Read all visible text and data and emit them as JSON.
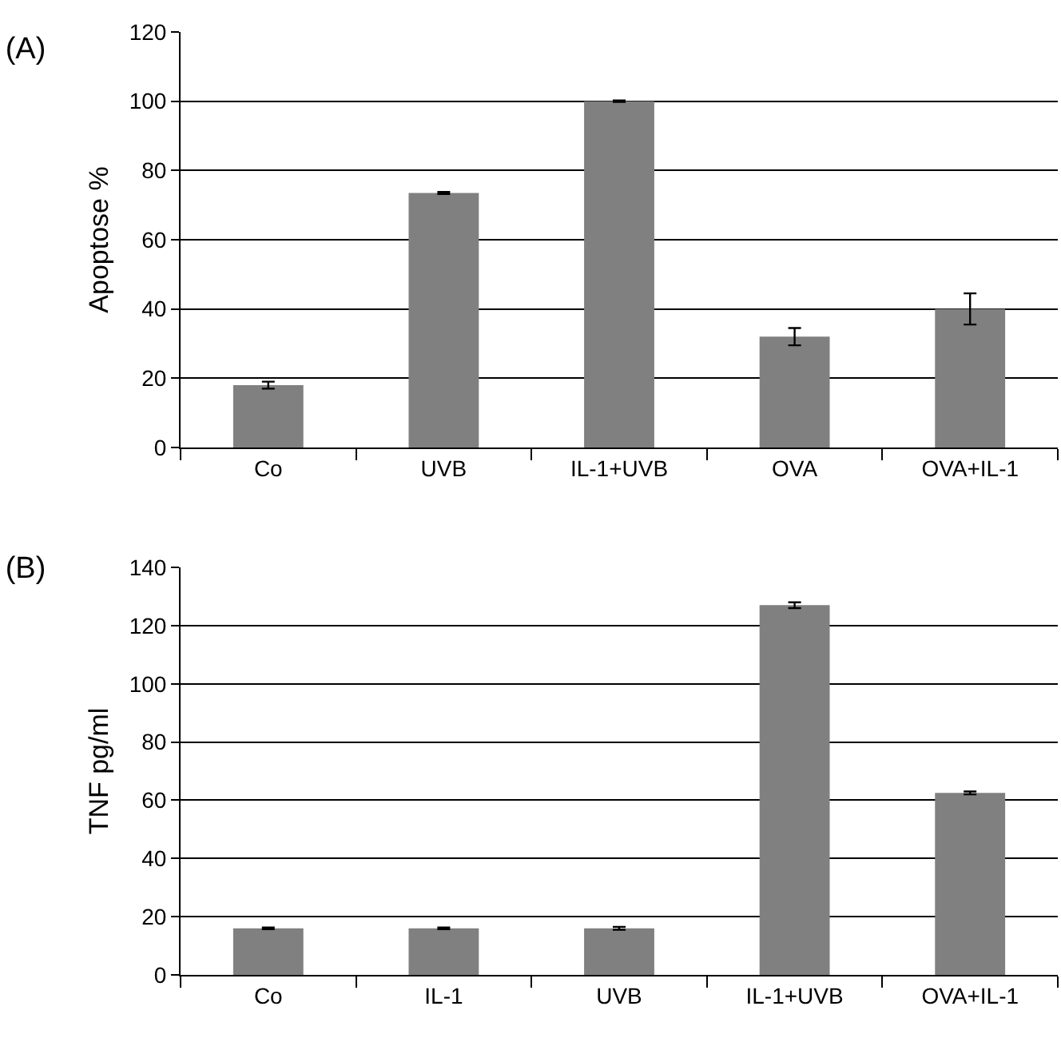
{
  "chart_data": [
    {
      "type": "bar",
      "title": "(A)",
      "ylabel": "Apoptose %",
      "categories": [
        "Co",
        "UVB",
        "IL-1+UVB",
        "OVA",
        "OVA+IL-1"
      ],
      "values": [
        18,
        73.5,
        100,
        32,
        40
      ],
      "errors": [
        1,
        0.3,
        0.2,
        2.5,
        4.5
      ],
      "color": "#808080",
      "ylim": [
        0,
        120
      ],
      "yticks": [
        0,
        20,
        40,
        60,
        80,
        100,
        120
      ],
      "grid": "y",
      "legend": false
    },
    {
      "type": "bar",
      "title": "(B)",
      "ylabel": "TNF pg/ml",
      "categories": [
        "Co",
        "IL-1",
        "UVB",
        "IL-1+UVB",
        "OVA+IL-1"
      ],
      "values": [
        16,
        16,
        16,
        127,
        62.5
      ],
      "errors": [
        0.3,
        0.3,
        0.5,
        1,
        0.5
      ],
      "color": "#808080",
      "ylim": [
        0,
        140
      ],
      "yticks": [
        0,
        20,
        40,
        60,
        80,
        100,
        120,
        140
      ],
      "grid": "y",
      "legend": false
    }
  ]
}
